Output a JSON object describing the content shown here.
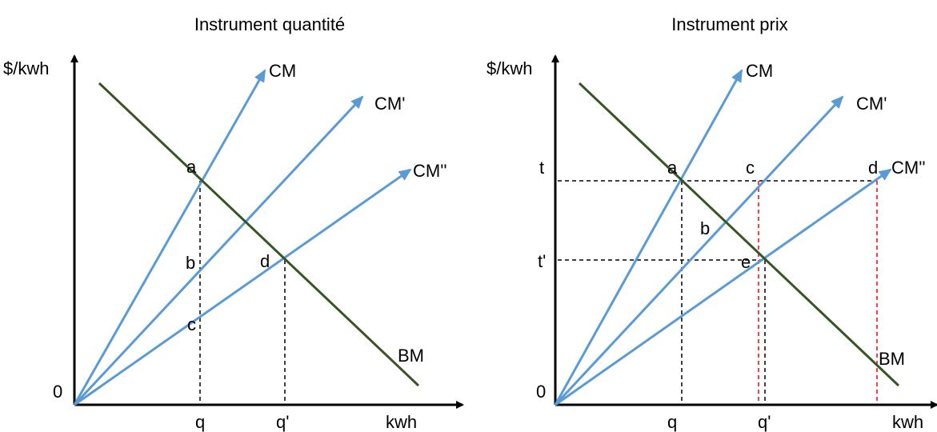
{
  "colors": {
    "axis": "#000000",
    "cost_curve": "#5b9bd5",
    "benefit_curve": "#375623",
    "guide": "#000000",
    "guide_red": "#ff0000"
  },
  "left": {
    "title": "Instrument quantité",
    "y_axis_label": "$/kwh",
    "x_axis_label": "kwh",
    "origin_label": "0",
    "curve_labels": {
      "cm": "CM",
      "cm1": "CM'",
      "cm2": "CM''",
      "bm": "BM"
    },
    "points": {
      "a": "a",
      "b": "b",
      "c": "c",
      "d": "d"
    },
    "x_ticks": {
      "q": "q",
      "q1": "q'"
    }
  },
  "right": {
    "title": "Instrument prix",
    "y_axis_label": "$/kwh",
    "x_axis_label": "kwh",
    "origin_label": "0",
    "curve_labels": {
      "cm": "CM",
      "cm1": "CM'",
      "cm2": "CM''",
      "bm": "BM"
    },
    "points": {
      "a": "a",
      "b": "b",
      "c": "c",
      "d": "d",
      "e": "e"
    },
    "y_ticks": {
      "t": "t",
      "t1": "t'"
    },
    "x_ticks": {
      "q": "q",
      "q1": "q'"
    }
  }
}
